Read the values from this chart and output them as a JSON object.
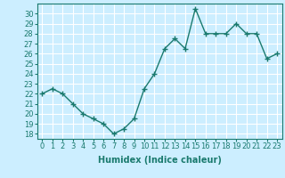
{
  "x": [
    0,
    1,
    2,
    3,
    4,
    5,
    6,
    7,
    8,
    9,
    10,
    11,
    12,
    13,
    14,
    15,
    16,
    17,
    18,
    19,
    20,
    21,
    22,
    23
  ],
  "y": [
    22,
    22.5,
    22,
    21,
    20,
    19.5,
    19,
    18,
    18.5,
    19.5,
    22.5,
    24,
    26.5,
    27.5,
    26.5,
    30.5,
    28,
    28,
    28,
    29,
    28,
    28,
    25.5,
    26
  ],
  "line_color": "#1a7a6e",
  "marker_color": "#1a7a6e",
  "bg_color": "#cceeff",
  "grid_color": "#ffffff",
  "xlabel": "Humidex (Indice chaleur)",
  "ylim": [
    17.5,
    31
  ],
  "xlim": [
    -0.5,
    23.5
  ],
  "yticks": [
    18,
    19,
    20,
    21,
    22,
    23,
    24,
    25,
    26,
    27,
    28,
    29,
    30
  ],
  "xticks": [
    0,
    1,
    2,
    3,
    4,
    5,
    6,
    7,
    8,
    9,
    10,
    11,
    12,
    13,
    14,
    15,
    16,
    17,
    18,
    19,
    20,
    21,
    22,
    23
  ],
  "xlabel_fontsize": 7,
  "tick_fontsize": 6,
  "linewidth": 1.0,
  "markersize": 4
}
